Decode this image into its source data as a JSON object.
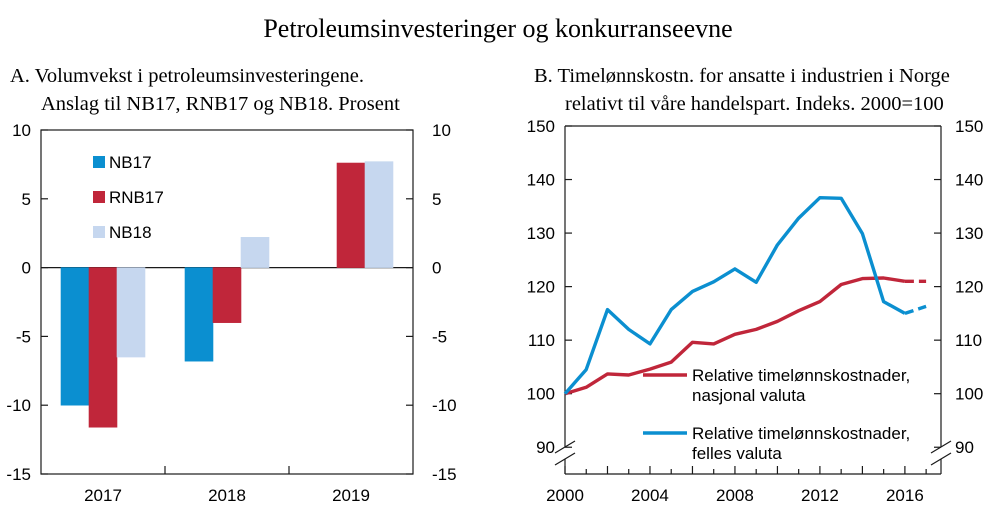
{
  "title": "Petroleumsinvesteringer og konkurranseevne",
  "colors": {
    "nb17": "#0b8fd0",
    "rnb17": "#c0263a",
    "nb18": "#c6d7ef",
    "axis": "#1a1a1a"
  },
  "chart_data": [
    {
      "type": "bar",
      "title_line1": "A.  Volumvekst i petroleumsinvesteringene.",
      "title_line2": "Anslag til NB17, RNB17 og NB18. Prosent",
      "categories": [
        "2017",
        "2018",
        "2019"
      ],
      "ylim": [
        -15,
        10
      ],
      "yticks": [
        "10",
        "5",
        "0",
        "-5",
        "-10",
        "-15"
      ],
      "legend_position": "top-left",
      "grid": false,
      "series": [
        {
          "name": "NB17",
          "color": "#0b8fd0",
          "values": [
            -10.0,
            -6.8,
            null
          ]
        },
        {
          "name": "RNB17",
          "color": "#c0263a",
          "values": [
            -11.6,
            -4.0,
            7.6
          ]
        },
        {
          "name": "NB18",
          "color": "#c6d7ef",
          "values": [
            -6.5,
            2.2,
            7.7
          ]
        }
      ]
    },
    {
      "type": "line",
      "title_line1": "B.  Timelønnskostn. for ansatte i industrien i Norge",
      "title_line2": "relativt til våre handelspart. Indeks. 2000=100",
      "ylim": [
        85,
        150
      ],
      "yticks": [
        "150",
        "140",
        "130",
        "120",
        "110",
        "100",
        "90"
      ],
      "xlim": [
        2000,
        2017.7
      ],
      "xticks": [
        "2000",
        "2004",
        "2008",
        "2012",
        "2016"
      ],
      "legend_position": "bottom-right",
      "grid": false,
      "axis_break": true,
      "series": [
        {
          "name_line1": "Relative timelønnskostnader,",
          "name_line2": "nasjonal valuta",
          "color": "#c0263a",
          "x": [
            2000,
            2001,
            2002,
            2003,
            2004,
            2005,
            2006,
            2007,
            2008,
            2009,
            2010,
            2011,
            2012,
            2013,
            2014,
            2015,
            2016
          ],
          "y": [
            100.0,
            101.2,
            103.7,
            103.5,
            104.6,
            105.9,
            109.6,
            109.3,
            111.1,
            112.0,
            113.5,
            115.5,
            117.2,
            120.4,
            121.5,
            121.6,
            121.0
          ],
          "projection_x": [
            2016,
            2017
          ],
          "projection_y": [
            121.0,
            121.0
          ]
        },
        {
          "name_line1": "Relative timelønnskostnader,",
          "name_line2": "felles valuta",
          "color": "#0b8fd0",
          "x": [
            2000,
            2001,
            2002,
            2003,
            2004,
            2005,
            2006,
            2007,
            2008,
            2009,
            2010,
            2011,
            2012,
            2013,
            2014,
            2015,
            2016
          ],
          "y": [
            100.0,
            104.5,
            115.7,
            112.0,
            109.3,
            115.7,
            119.1,
            120.9,
            123.3,
            120.8,
            127.8,
            132.8,
            136.6,
            136.5,
            129.9,
            117.2,
            115.0
          ],
          "projection_x": [
            2016,
            2017
          ],
          "projection_y": [
            115.0,
            116.3
          ]
        }
      ]
    }
  ]
}
